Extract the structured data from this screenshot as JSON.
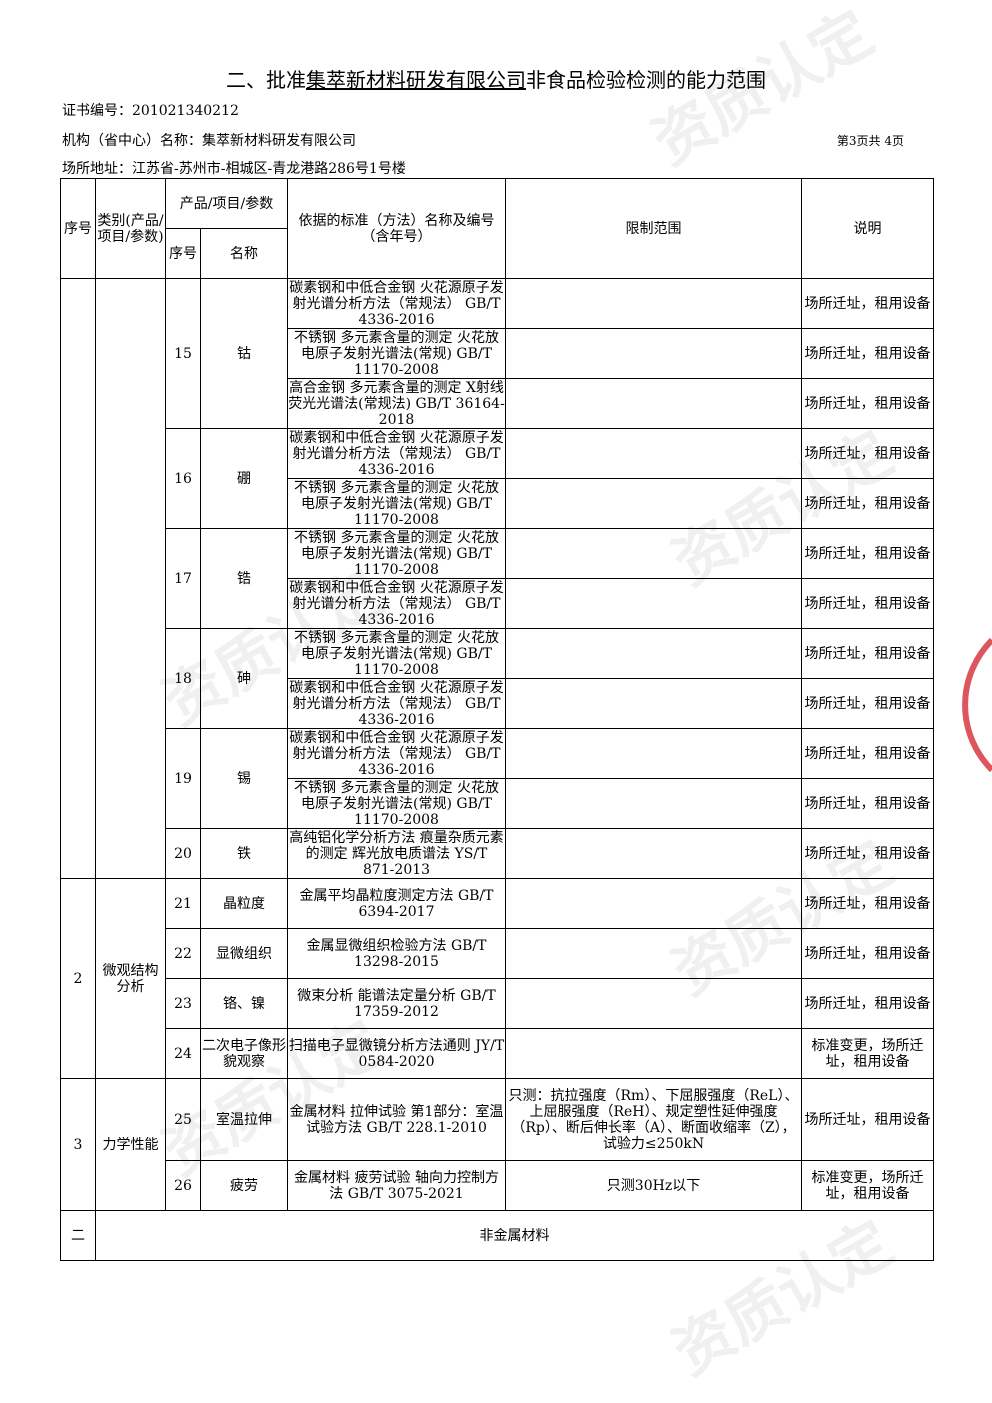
{
  "title": {
    "prefix": "二、批准",
    "company": "集萃新材料研发有限公司",
    "suffix": "非食品检验检测的能力范围"
  },
  "cert_no": "证书编号：201021340212",
  "org_name": "机构（省中心）名称：集萃新材料研发有限公司",
  "address": "场所地址：江苏省-苏州市-相城区-青龙港路286号1号楼",
  "page_info": "第3页共 4页",
  "headers": {
    "seq": "序号",
    "category": "类别(产品/项目/参数)",
    "product": "产品/项目/参数",
    "sub_seq": "序号",
    "name": "名称",
    "standard": "依据的标准（方法）名称及编号（含年号）",
    "limit": "限制范围",
    "note": "说明"
  },
  "groups": [
    {
      "seq": "",
      "category": "",
      "items": [
        {
          "no": "15",
          "name": "钴",
          "methods": [
            {
              "standard": "碳素钢和中低合金钢 火花源原子发射光谱分析方法（常规法） GB/T 4336-2016",
              "limit": "",
              "note": "场所迁址，租用设备"
            },
            {
              "standard": "不锈钢 多元素含量的测定 火花放电原子发射光谱法(常规) GB/T 11170-2008",
              "limit": "",
              "note": "场所迁址，租用设备"
            },
            {
              "standard": "高合金钢 多元素含量的测定 X射线荧光光谱法(常规法) GB/T 36164-2018",
              "limit": "",
              "note": "场所迁址，租用设备"
            }
          ]
        },
        {
          "no": "16",
          "name": "硼",
          "methods": [
            {
              "standard": "碳素钢和中低合金钢 火花源原子发射光谱分析方法（常规法） GB/T 4336-2016",
              "limit": "",
              "note": "场所迁址，租用设备"
            },
            {
              "standard": "不锈钢 多元素含量的测定 火花放电原子发射光谱法(常规) GB/T 11170-2008",
              "limit": "",
              "note": "场所迁址，租用设备"
            }
          ]
        },
        {
          "no": "17",
          "name": "锆",
          "methods": [
            {
              "standard": "不锈钢 多元素含量的测定 火花放电原子发射光谱法(常规) GB/T 11170-2008",
              "limit": "",
              "note": "场所迁址，租用设备"
            },
            {
              "standard": "碳素钢和中低合金钢 火花源原子发射光谱分析方法（常规法） GB/T 4336-2016",
              "limit": "",
              "note": "场所迁址，租用设备"
            }
          ]
        },
        {
          "no": "18",
          "name": "砷",
          "methods": [
            {
              "standard": "不锈钢 多元素含量的测定 火花放电原子发射光谱法(常规) GB/T 11170-2008",
              "limit": "",
              "note": "场所迁址，租用设备"
            },
            {
              "standard": "碳素钢和中低合金钢 火花源原子发射光谱分析方法（常规法） GB/T 4336-2016",
              "limit": "",
              "note": "场所迁址，租用设备"
            }
          ]
        },
        {
          "no": "19",
          "name": "锡",
          "methods": [
            {
              "standard": "碳素钢和中低合金钢 火花源原子发射光谱分析方法（常规法） GB/T 4336-2016",
              "limit": "",
              "note": "场所迁址，租用设备"
            },
            {
              "standard": "不锈钢 多元素含量的测定 火花放电原子发射光谱法(常规) GB/T 11170-2008",
              "limit": "",
              "note": "场所迁址，租用设备"
            }
          ]
        },
        {
          "no": "20",
          "name": "铁",
          "methods": [
            {
              "standard": "高纯铝化学分析方法 痕量杂质元素的测定 辉光放电质谱法 YS/T 871-2013",
              "limit": "",
              "note": "场所迁址，租用设备"
            }
          ]
        }
      ]
    },
    {
      "seq": "2",
      "category": "微观结构分析",
      "items": [
        {
          "no": "21",
          "name": "晶粒度",
          "methods": [
            {
              "standard": "金属平均晶粒度测定方法 GB/T 6394-2017",
              "limit": "",
              "note": "场所迁址，租用设备"
            }
          ]
        },
        {
          "no": "22",
          "name": "显微组织",
          "methods": [
            {
              "standard": "金属显微组织检验方法 GB/T 13298-2015",
              "limit": "",
              "note": "场所迁址，租用设备"
            }
          ]
        },
        {
          "no": "23",
          "name": "铬、镍",
          "methods": [
            {
              "standard": "微束分析 能谱法定量分析 GB/T 17359-2012",
              "limit": "",
              "note": "场所迁址，租用设备"
            }
          ]
        },
        {
          "no": "24",
          "name": "二次电子像形貌观察",
          "methods": [
            {
              "standard": "扫描电子显微镜分析方法通则 JY/T 0584-2020",
              "limit": "",
              "note": "标准变更，场所迁址，租用设备"
            }
          ]
        }
      ]
    },
    {
      "seq": "3",
      "category": "力学性能",
      "items": [
        {
          "no": "25",
          "name": "室温拉伸",
          "methods": [
            {
              "standard": "金属材料 拉伸试验 第1部分：室温试验方法 GB/T 228.1-2010",
              "limit": "只测：抗拉强度（Rm）、下屈服强度（ReL）、上屈服强度（ReH）、规定塑性延伸强度（Rp）、断后伸长率（A）、断面收缩率（Z），试验力≤250kN",
              "note": "场所迁址，租用设备",
              "tall": true
            }
          ]
        },
        {
          "no": "26",
          "name": "疲劳",
          "methods": [
            {
              "standard": "金属材料 疲劳试验 轴向力控制方法 GB/T 3075-2021",
              "limit": "只测30Hz以下",
              "note": "标准变更，场所迁址，租用设备"
            }
          ]
        }
      ]
    }
  ],
  "section_two": {
    "seq": "二",
    "label": "非金属材料"
  },
  "stamp_color": "#d21e28"
}
